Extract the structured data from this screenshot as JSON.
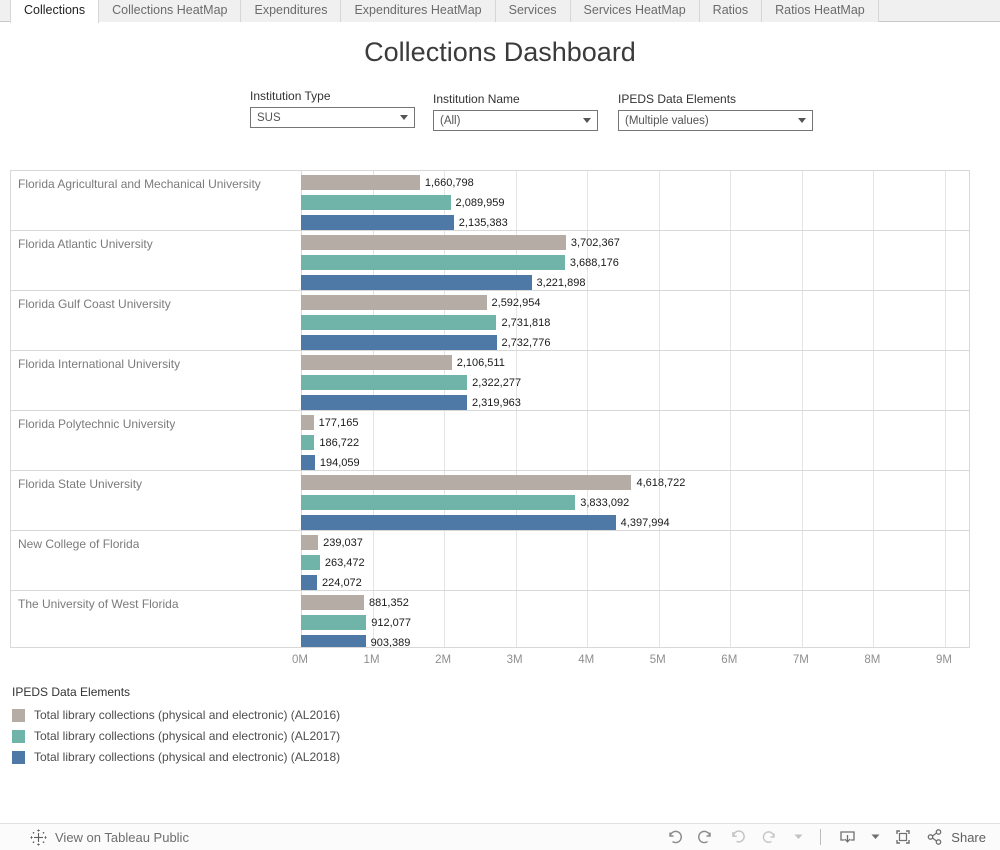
{
  "tabs": {
    "items": [
      {
        "label": "Collections",
        "active": true
      },
      {
        "label": "Collections HeatMap",
        "active": false
      },
      {
        "label": "Expenditures",
        "active": false
      },
      {
        "label": "Expenditures HeatMap",
        "active": false
      },
      {
        "label": "Services",
        "active": false
      },
      {
        "label": "Services HeatMap",
        "active": false
      },
      {
        "label": "Ratios",
        "active": false
      },
      {
        "label": "Ratios HeatMap",
        "active": false
      }
    ]
  },
  "title": "Collections Dashboard",
  "filters": [
    {
      "label": "Institution Type",
      "value": "SUS"
    },
    {
      "label": "Institution Name",
      "value": "(All)"
    },
    {
      "label": "IPEDS Data Elements",
      "value": "(Multiple values)"
    }
  ],
  "chart_data": {
    "type": "bar",
    "orientation": "horizontal",
    "title": "Collections Dashboard",
    "legend_title": "IPEDS Data Elements",
    "legend_position": "bottom-left",
    "grid": true,
    "xlim": [
      0,
      9370000
    ],
    "x_ticks": [
      "0M",
      "1M",
      "2M",
      "3M",
      "4M",
      "5M",
      "6M",
      "7M",
      "8M",
      "9M"
    ],
    "categories": [
      "Florida Agricultural and Mechanical University",
      "Florida Atlantic University",
      "Florida Gulf Coast University",
      "Florida International University",
      "Florida Polytechnic University",
      "Florida State University",
      "New College of Florida",
      "The University of West Florida"
    ],
    "series": [
      {
        "name": "Total library collections (physical and electronic) (AL2016)",
        "color": "#b5aca5",
        "values": [
          1660798,
          3702367,
          2592954,
          2106511,
          177165,
          4618722,
          239037,
          881352
        ]
      },
      {
        "name": "Total library collections (physical and electronic) (AL2017)",
        "color": "#70b4a9",
        "values": [
          2089959,
          3688176,
          2731818,
          2322277,
          186722,
          3833092,
          263472,
          912077
        ]
      },
      {
        "name": "Total library collections (physical and electronic) (AL2018)",
        "color": "#4e79a7",
        "values": [
          2135383,
          3221898,
          2732776,
          2319963,
          194059,
          4397994,
          224072,
          903389
        ]
      }
    ]
  },
  "footer": {
    "view_on": "View on Tableau Public",
    "share_label": "Share",
    "toolbar_icons": [
      "undo",
      "redo",
      "revert",
      "refresh",
      "refresh-caret",
      "download-display",
      "download-caret",
      "fullscreen",
      "share"
    ]
  },
  "colors": {
    "accent_blue": "#4e79a7",
    "accent_teal": "#70b4a9",
    "accent_tan": "#b5aca5",
    "tab_active_text": "#1f1f1f",
    "tab_inactive_text": "#6b6b6b"
  }
}
